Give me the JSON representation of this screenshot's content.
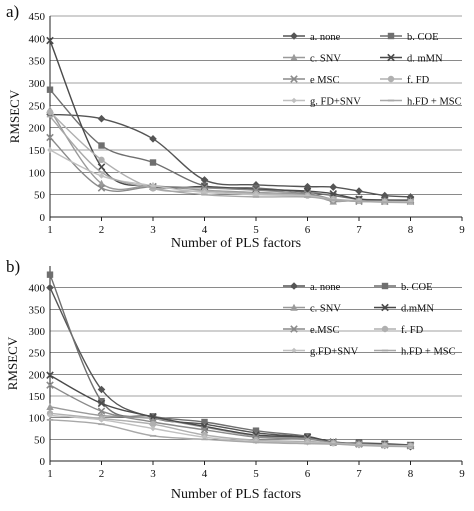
{
  "chart_data": [
    {
      "type": "line",
      "panel_label": "a)",
      "title": "",
      "xlabel": "Number of PLS factors",
      "ylabel": "RMSECV",
      "xlim": [
        1,
        9
      ],
      "ylim": [
        0,
        450
      ],
      "xticks": [
        "1",
        "2",
        "3",
        "4",
        "5",
        "6",
        "7",
        "8",
        "9"
      ],
      "yticks": [
        "0",
        "50",
        "100",
        "150",
        "200",
        "250",
        "300",
        "350",
        "400",
        "450"
      ],
      "x": [
        1,
        2,
        3,
        4,
        5,
        6,
        6.5,
        7,
        7.5,
        8
      ],
      "grid": "horizontal",
      "legend_position": "top-right",
      "series": [
        {
          "name": "a. none",
          "marker": "diamond",
          "color": "#555555",
          "values": [
            230,
            220,
            175,
            83,
            72,
            68,
            67,
            58,
            48,
            45
          ]
        },
        {
          "name": "b. COE",
          "marker": "square",
          "color": "#6f6f6f",
          "values": [
            285,
            160,
            122,
            70,
            65,
            55,
            48,
            40,
            38,
            37
          ]
        },
        {
          "name": "c. SNV",
          "marker": "triangle",
          "color": "#9a9a9a",
          "values": [
            240,
            75,
            70,
            60,
            55,
            50,
            35,
            38,
            35,
            36
          ]
        },
        {
          "name": "d. mMN",
          "marker": "x",
          "color": "#4a4a4a",
          "values": [
            395,
            112,
            68,
            68,
            62,
            58,
            52,
            40,
            38,
            38
          ]
        },
        {
          "name": "e MSC",
          "marker": "x",
          "color": "#8a8a8a",
          "values": [
            178,
            65,
            68,
            65,
            60,
            52,
            40,
            35,
            35,
            35
          ]
        },
        {
          "name": "f. FD",
          "marker": "circle",
          "color": "#b0b0b0",
          "values": [
            235,
            128,
            64,
            58,
            52,
            48,
            40,
            36,
            35,
            34
          ]
        },
        {
          "name": "g. FD+SNV",
          "marker": "diamond-small",
          "color": "#c0c0c0",
          "values": [
            150,
            92,
            70,
            55,
            50,
            47,
            38,
            36,
            34,
            33
          ]
        },
        {
          "name": "h.FD + MSC",
          "marker": "dash",
          "color": "#a8a8a8",
          "values": [
            225,
            100,
            65,
            50,
            45,
            45,
            38,
            35,
            33,
            32
          ]
        }
      ]
    },
    {
      "type": "line",
      "panel_label": "b)",
      "title": "",
      "xlabel": "Number of PLS factors",
      "ylabel": "RMSECV",
      "xlim": [
        1,
        9
      ],
      "ylim": [
        0,
        450
      ],
      "xticks": [
        "1",
        "2",
        "3",
        "4",
        "5",
        "6",
        "7",
        "8",
        "9"
      ],
      "yticks": [
        "0",
        "50",
        "100",
        "150",
        "200",
        "250",
        "300",
        "350",
        "400"
      ],
      "x": [
        1,
        2,
        3,
        4,
        5,
        6,
        6.5,
        7,
        7.5,
        8
      ],
      "grid": "horizontal",
      "legend_position": "top-right",
      "series": [
        {
          "name": "a. none",
          "marker": "diamond",
          "color": "#555555",
          "values": [
            400,
            165,
            100,
            85,
            65,
            55,
            43,
            38,
            36,
            33
          ]
        },
        {
          "name": "b. COE",
          "marker": "square",
          "color": "#6f6f6f",
          "values": [
            430,
            138,
            103,
            90,
            70,
            57,
            42,
            42,
            40,
            37
          ]
        },
        {
          "name": "c. SNV",
          "marker": "triangle",
          "color": "#9a9a9a",
          "values": [
            125,
            105,
            98,
            78,
            58,
            52,
            44,
            40,
            38,
            35
          ]
        },
        {
          "name": "d.mMN",
          "marker": "x",
          "color": "#4a4a4a",
          "values": [
            198,
            133,
            102,
            80,
            60,
            55,
            44,
            40,
            39,
            36
          ]
        },
        {
          "name": "e.MSC",
          "marker": "x",
          "color": "#8a8a8a",
          "values": [
            175,
            115,
            90,
            72,
            55,
            50,
            43,
            39,
            37,
            35
          ]
        },
        {
          "name": "f. FD",
          "marker": "circle",
          "color": "#b0b0b0",
          "values": [
            110,
            98,
            85,
            60,
            48,
            45,
            41,
            38,
            36,
            35
          ]
        },
        {
          "name": "g.FD+SNV",
          "marker": "diamond-small",
          "color": "#c0c0c0",
          "values": [
            105,
            95,
            75,
            55,
            45,
            42,
            40,
            37,
            35,
            34
          ]
        },
        {
          "name": "h.FD + MSC",
          "marker": "dash",
          "color": "#a8a8a8",
          "values": [
            95,
            85,
            58,
            50,
            43,
            40,
            39,
            36,
            34,
            33
          ]
        }
      ]
    }
  ]
}
